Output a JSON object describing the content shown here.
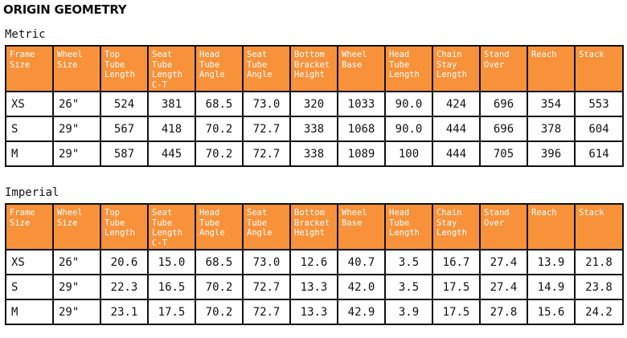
{
  "title": "ORIGIN GEOMETRY",
  "headers": [
    [
      "Frame",
      "Size"
    ],
    [
      "Wheel",
      "Size"
    ],
    [
      "Top",
      "Tube",
      "Length"
    ],
    [
      "Seat",
      "Tube",
      "Length",
      "C-T"
    ],
    [
      "Head",
      "Tube",
      "Angle"
    ],
    [
      "Seat",
      "Tube",
      "Angle"
    ],
    [
      "Bottom",
      "Bracket",
      "Height"
    ],
    [
      "Wheel",
      "Base"
    ],
    [
      "Head",
      "Tube",
      "Length"
    ],
    [
      "Chain",
      "Stay",
      "Length"
    ],
    [
      "Stand",
      "Over"
    ],
    [
      "Reach"
    ],
    [
      "Stack"
    ]
  ],
  "tables": [
    {
      "label": "Metric",
      "rows": [
        [
          "XS",
          "26\"",
          "524",
          "381",
          "68.5",
          "73.0",
          "320",
          "1033",
          "90.0",
          "424",
          "696",
          "354",
          "553"
        ],
        [
          "S",
          "29\"",
          "567",
          "418",
          "70.2",
          "72.7",
          "338",
          "1068",
          "90.0",
          "444",
          "696",
          "378",
          "604"
        ],
        [
          "M",
          "29\"",
          "587",
          "445",
          "70.2",
          "72.7",
          "338",
          "1089",
          "100",
          "444",
          "705",
          "396",
          "614"
        ]
      ]
    },
    {
      "label": "Imperial",
      "rows": [
        [
          "XS",
          "26\"",
          "20.6",
          "15.0",
          "68.5",
          "73.0",
          "12.6",
          "40.7",
          "3.5",
          "16.7",
          "27.4",
          "13.9",
          "21.8"
        ],
        [
          "S",
          "29\"",
          "22.3",
          "16.5",
          "70.2",
          "72.7",
          "13.3",
          "42.0",
          "3.5",
          "17.5",
          "27.4",
          "14.9",
          "23.8"
        ],
        [
          "M",
          "29\"",
          "23.1",
          "17.5",
          "70.2",
          "72.7",
          "13.3",
          "42.9",
          "3.9",
          "17.5",
          "27.8",
          "15.6",
          "24.2"
        ]
      ]
    }
  ]
}
